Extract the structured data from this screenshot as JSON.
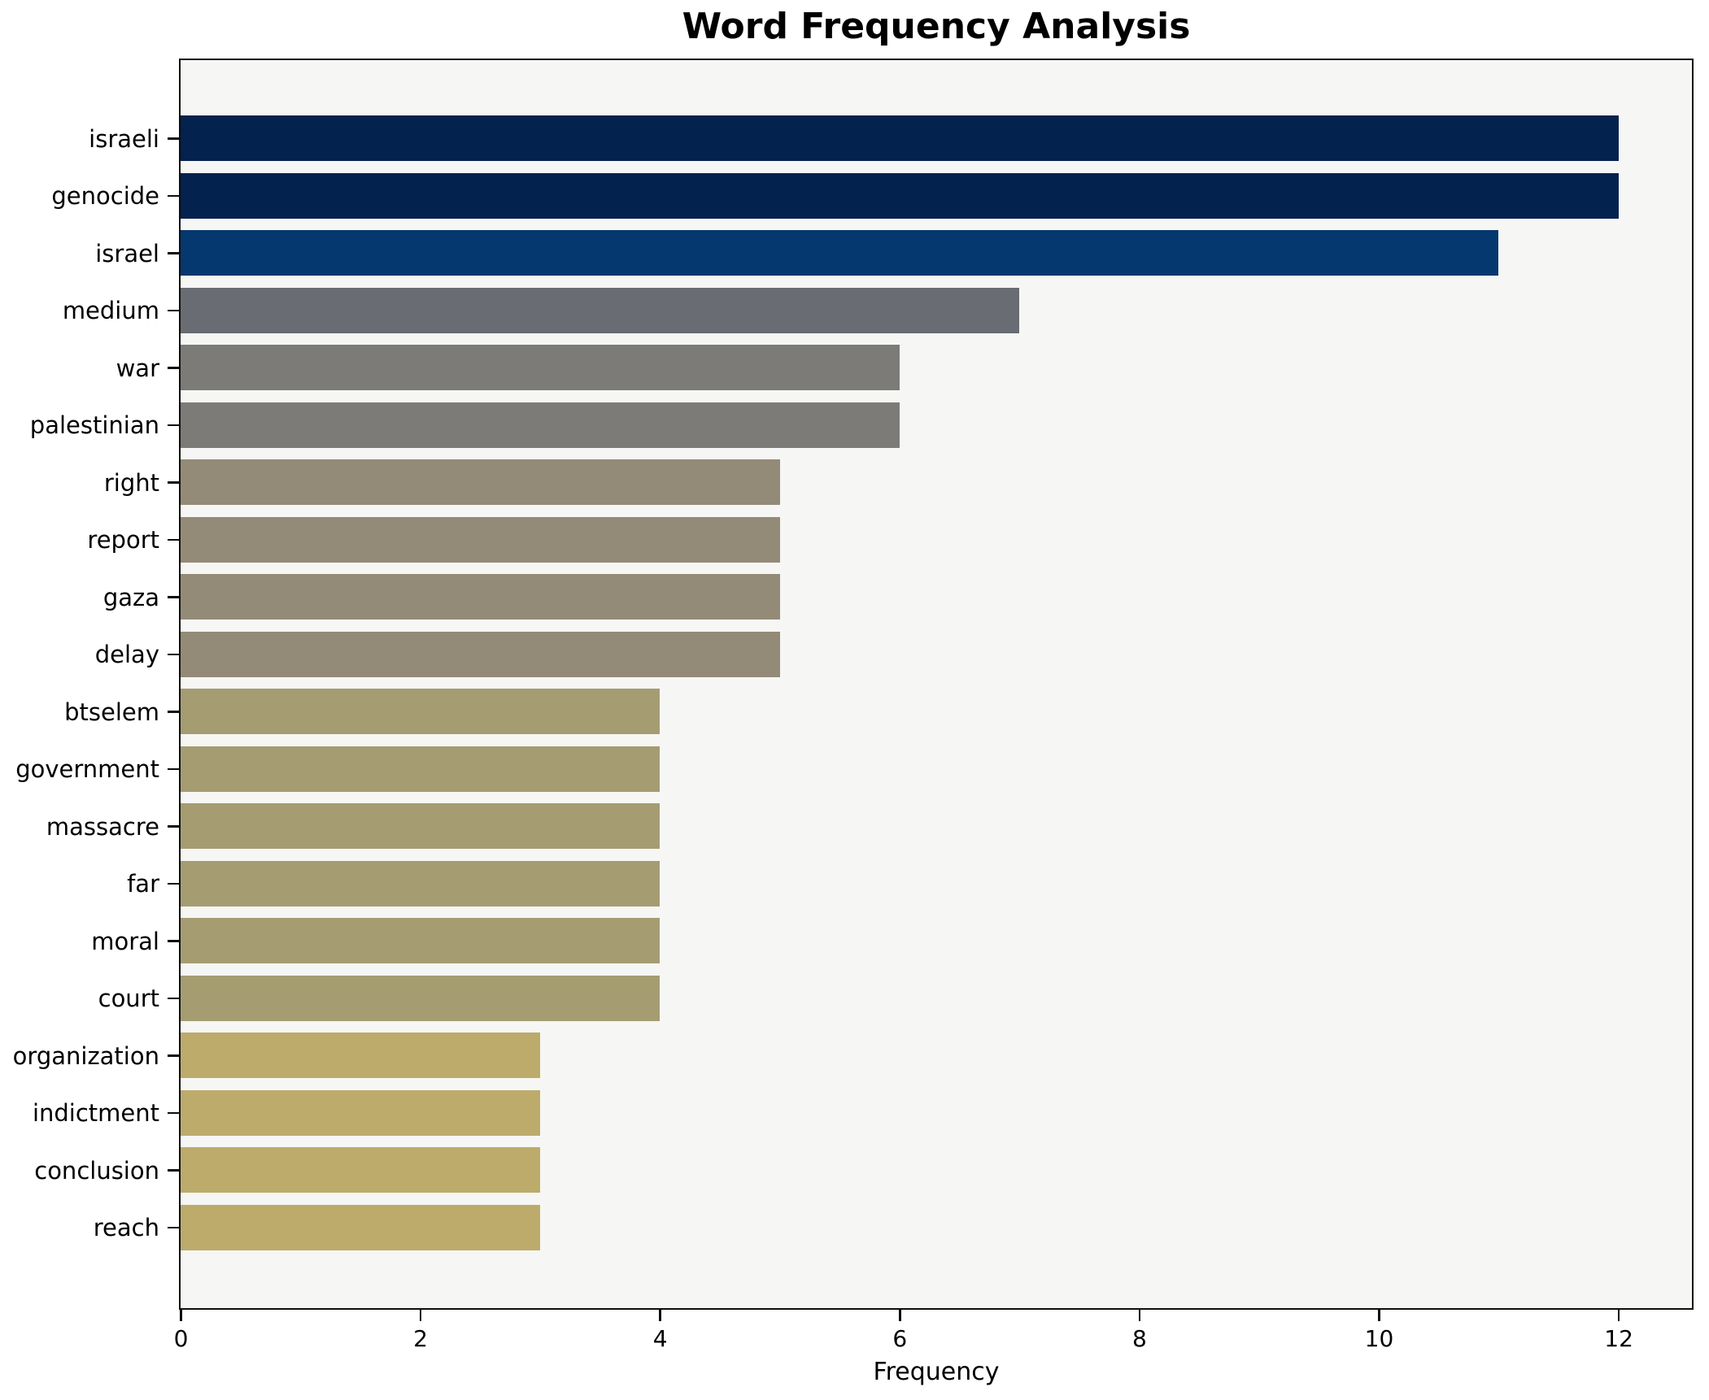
{
  "chart_data": {
    "type": "bar",
    "orientation": "horizontal",
    "title": "Word Frequency Analysis",
    "xlabel": "Frequency",
    "ylabel": "",
    "categories": [
      "israeli",
      "genocide",
      "israel",
      "medium",
      "war",
      "palestinian",
      "right",
      "report",
      "gaza",
      "delay",
      "btselem",
      "government",
      "massacre",
      "far",
      "moral",
      "court",
      "organization",
      "indictment",
      "conclusion",
      "reach"
    ],
    "values": [
      12,
      12,
      11,
      7,
      6,
      6,
      5,
      5,
      5,
      5,
      4,
      4,
      4,
      4,
      4,
      4,
      3,
      3,
      3,
      3
    ],
    "bar_colors": [
      "#03224d",
      "#03224d",
      "#05386e",
      "#696c72",
      "#7c7b78",
      "#7c7b78",
      "#938b77",
      "#938b77",
      "#938b77",
      "#938b77",
      "#a59c72",
      "#a59c72",
      "#a59c72",
      "#a59c72",
      "#a59c72",
      "#a59c72",
      "#bcab6a",
      "#bcab6a",
      "#bcab6a",
      "#bcab6a"
    ],
    "x_ticks": [
      0,
      2,
      4,
      6,
      8,
      10,
      12
    ],
    "xlim": [
      0,
      12.6
    ],
    "grid": false,
    "legend_position": "none",
    "plot_background": "#f6f6f4",
    "figure_background": "#ffffff",
    "spine_color": "#0e0e0e",
    "text_color": "#000000"
  }
}
